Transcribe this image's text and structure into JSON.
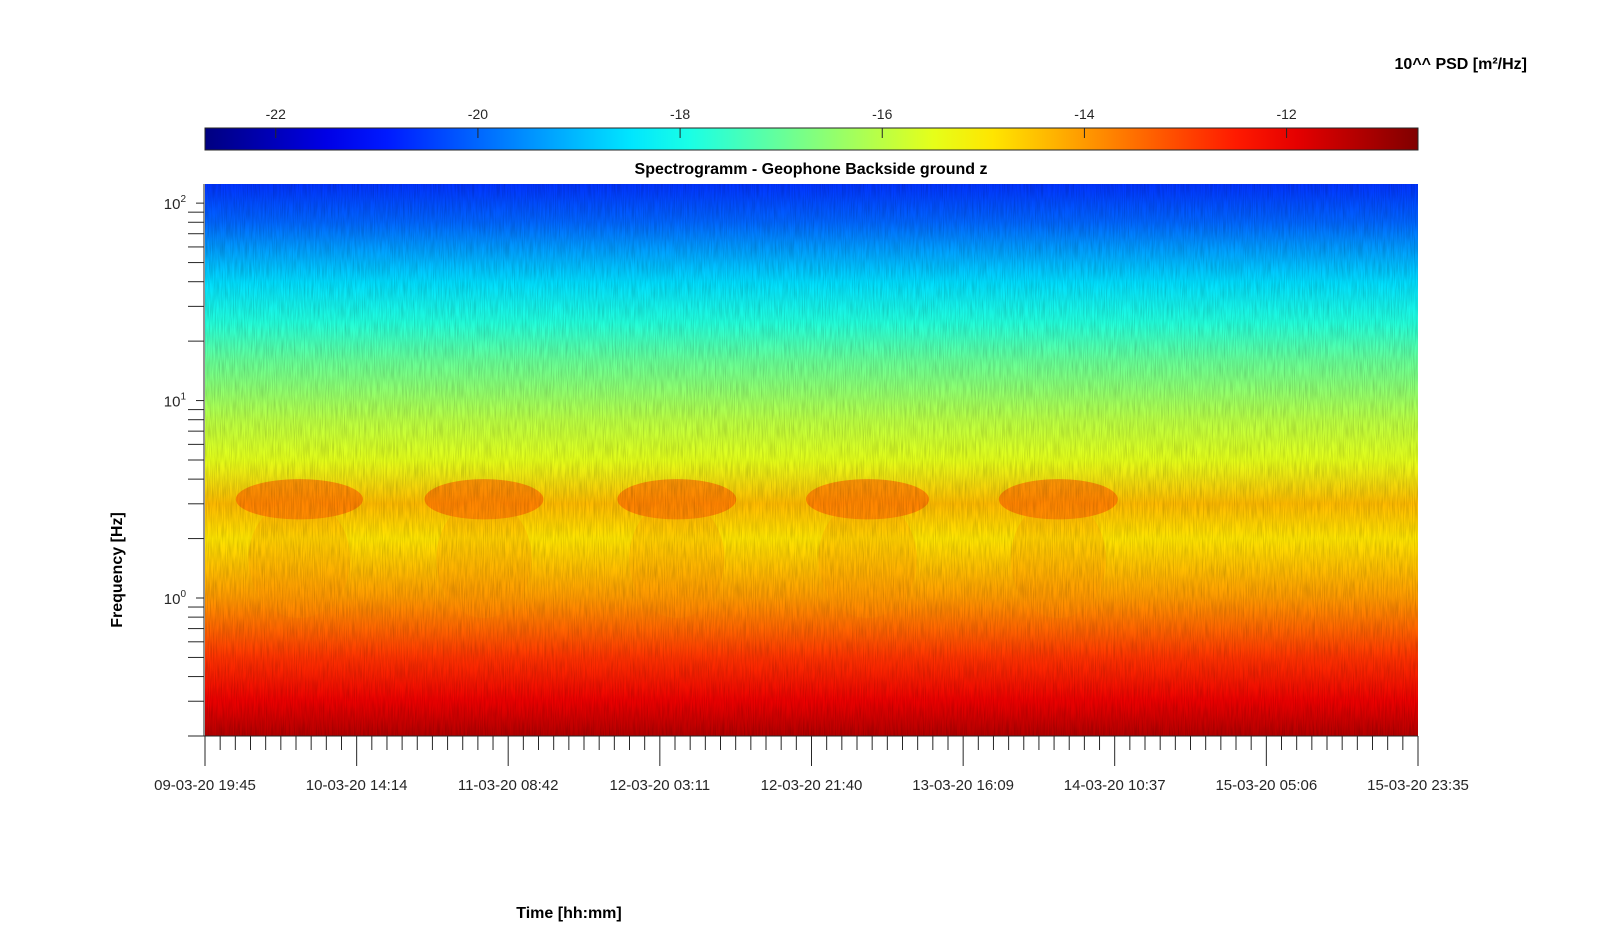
{
  "chart_data": {
    "type": "heatmap",
    "title": "Spectrogramm - Geophone Backside ground z",
    "xlabel": "Time [hh:mm]",
    "ylabel": "Frequency [Hz]",
    "y_scale": "log",
    "ylim": [
      0.2,
      125
    ],
    "y_ticks": [
      {
        "base": "10",
        "exp": "0",
        "value": 1
      },
      {
        "base": "10",
        "exp": "1",
        "value": 10
      },
      {
        "base": "10",
        "exp": "2",
        "value": 100
      }
    ],
    "x_ticks": [
      "09-03-20 19:45",
      "10-03-20 14:14",
      "11-03-20 08:42",
      "12-03-20 03:11",
      "12-03-20 21:40",
      "13-03-20 16:09",
      "14-03-20 10:37",
      "15-03-20 05:06",
      "15-03-20 23:35"
    ],
    "xlim": [
      "09-03-20 19:45",
      "15-03-20 23:35"
    ],
    "colorbar": {
      "title": "10^^ PSD [m²/Hz]",
      "range": [
        -22.7,
        -10.7
      ],
      "ticks": [
        -22,
        -20,
        -18,
        -16,
        -14,
        -12
      ],
      "tick_labels": [
        "-22",
        "-20",
        "-18",
        "-16",
        "-14",
        "-12"
      ],
      "colormap": "jet",
      "placement": "top"
    },
    "psd_profile_by_frequency": {
      "frequency_hz": [
        0.2,
        0.3,
        0.5,
        0.7,
        1.0,
        2.0,
        3.0,
        5.0,
        8.0,
        12.0,
        16.0,
        25.0,
        40.0,
        60.0,
        80.0,
        125.0
      ],
      "log10_psd": [
        -11.3,
        -12.0,
        -12.8,
        -13.4,
        -14.0,
        -14.9,
        -14.4,
        -15.5,
        -16.0,
        -16.6,
        -17.0,
        -17.8,
        -18.6,
        -19.4,
        -20.0,
        -20.6
      ]
    },
    "daily_activity_bands": {
      "frequency_range_hz": [
        2.5,
        4.0
      ],
      "peak_log10_psd": -13.2,
      "time_windows": [
        [
          "09-03-20 23:30",
          "10-03-20 15:00"
        ],
        [
          "10-03-20 22:30",
          "11-03-20 13:00"
        ],
        [
          "11-03-20 22:00",
          "12-03-20 12:30"
        ],
        [
          "12-03-20 21:00",
          "13-03-20 12:00"
        ],
        [
          "13-03-20 20:30",
          "14-03-20 11:00"
        ]
      ]
    },
    "grid": false
  }
}
